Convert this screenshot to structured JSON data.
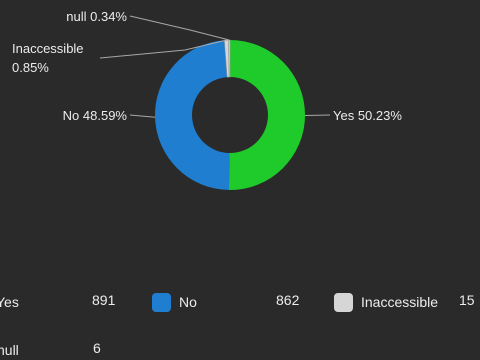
{
  "chart_data": {
    "type": "pie",
    "variant": "donut",
    "title": "",
    "slices": [
      {
        "label": "Yes",
        "percent": 50.23,
        "count": 891,
        "color": "#1ecb2a",
        "callout": "Yes 50.23%"
      },
      {
        "label": "No",
        "percent": 48.59,
        "count": 862,
        "color": "#1f7ed0",
        "callout": "No 48.59%"
      },
      {
        "label": "Inaccessible",
        "percent": 0.85,
        "count": 15,
        "color": "#d6d6d6",
        "callout_lines": [
          "Inaccessible",
          "0.85%"
        ]
      },
      {
        "label": "null",
        "percent": 0.34,
        "count": 6,
        "color": "#d6d6d6",
        "callout": "null 0.34%"
      }
    ],
    "legend": {
      "placement": "bottom",
      "items": [
        {
          "label": "Yes",
          "value": "891"
        },
        {
          "label": "No",
          "value": "862"
        },
        {
          "label": "Inaccessible",
          "value": "15"
        },
        {
          "label": "null",
          "value": "6"
        }
      ]
    }
  }
}
